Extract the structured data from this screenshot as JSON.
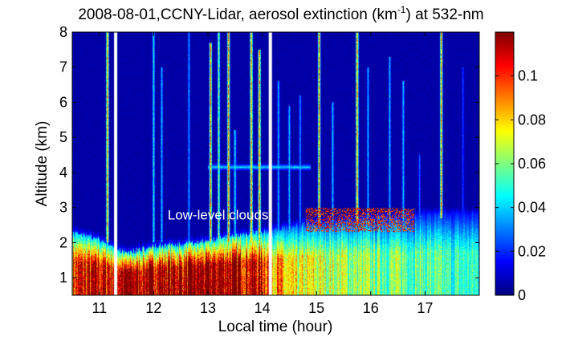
{
  "chart_data": {
    "type": "heatmap",
    "title_main": "2008-08-01,CCNY-Lidar, aerosol extinction (km",
    "title_sup": "-1",
    "title_end": ") at 532-nm",
    "xlabel": "Local time (hour)",
    "ylabel": "Altitude (km)",
    "xlim": [
      10.5,
      18.0
    ],
    "ylim": [
      0.5,
      8.0
    ],
    "xticks": [
      11,
      12,
      13,
      14,
      15,
      16,
      17
    ],
    "yticks": [
      1,
      2,
      3,
      4,
      5,
      6,
      7,
      8
    ],
    "colorbar": {
      "min": 0,
      "max": 0.12,
      "ticks": [
        0,
        0.02,
        0.04,
        0.06,
        0.08,
        0.1
      ],
      "tick_labels": [
        "0",
        "0.02",
        "0.04",
        "0.06",
        "0.08",
        "0.1"
      ],
      "colormap": "jet"
    },
    "annotation": {
      "text": "Low-level clouds",
      "x": 14.0,
      "y": 2.8,
      "color": "#ffffff"
    },
    "data_gaps_hours": [
      11.3,
      14.15
    ],
    "field": {
      "background": 0.003,
      "boundary_layer": [
        {
          "time": 10.5,
          "top_km": 2.3,
          "core_value": 0.1
        },
        {
          "time": 11.0,
          "top_km": 2.1,
          "core_value": 0.11
        },
        {
          "time": 11.5,
          "top_km": 1.7,
          "core_value": 0.12
        },
        {
          "time": 12.0,
          "top_km": 1.9,
          "core_value": 0.12
        },
        {
          "time": 12.5,
          "top_km": 1.95,
          "core_value": 0.12
        },
        {
          "time": 13.0,
          "top_km": 2.05,
          "core_value": 0.12
        },
        {
          "time": 13.5,
          "top_km": 2.2,
          "core_value": 0.12
        },
        {
          "time": 14.0,
          "top_km": 2.3,
          "core_value": 0.11
        },
        {
          "time": 14.5,
          "top_km": 2.45,
          "core_value": 0.07
        },
        {
          "time": 15.0,
          "top_km": 2.55,
          "core_value": 0.07
        },
        {
          "time": 15.5,
          "top_km": 2.6,
          "core_value": 0.065
        },
        {
          "time": 16.0,
          "top_km": 2.7,
          "core_value": 0.06
        },
        {
          "time": 16.5,
          "top_km": 2.7,
          "core_value": 0.06
        },
        {
          "time": 17.0,
          "top_km": 2.8,
          "core_value": 0.055
        },
        {
          "time": 17.5,
          "top_km": 2.8,
          "core_value": 0.05
        },
        {
          "time": 18.0,
          "top_km": 2.8,
          "core_value": 0.05
        }
      ],
      "elevated_layer": {
        "t_start": 13.0,
        "t_end": 14.9,
        "altitude_km": 4.15,
        "thickness_km": 0.12,
        "value": 0.04
      },
      "cloud_plumes": [
        {
          "time": 11.15,
          "y_bottom": 2.0,
          "y_top": 8.0,
          "value": 0.12
        },
        {
          "time": 12.0,
          "y_bottom": 2.0,
          "y_top": 8.0,
          "value": 0.06
        },
        {
          "time": 12.15,
          "y_bottom": 2.0,
          "y_top": 7.0,
          "value": 0.05
        },
        {
          "time": 12.65,
          "y_bottom": 2.0,
          "y_top": 8.0,
          "value": 0.045
        },
        {
          "time": 13.05,
          "y_bottom": 2.0,
          "y_top": 7.7,
          "value": 0.12
        },
        {
          "time": 13.2,
          "y_bottom": 2.0,
          "y_top": 8.0,
          "value": 0.08
        },
        {
          "time": 13.38,
          "y_bottom": 2.0,
          "y_top": 8.0,
          "value": 0.12
        },
        {
          "time": 13.5,
          "y_bottom": 2.0,
          "y_top": 5.2,
          "value": 0.06
        },
        {
          "time": 13.8,
          "y_bottom": 2.0,
          "y_top": 8.0,
          "value": 0.12
        },
        {
          "time": 13.95,
          "y_bottom": 2.0,
          "y_top": 7.5,
          "value": 0.12
        },
        {
          "time": 14.3,
          "y_bottom": 2.0,
          "y_top": 6.6,
          "value": 0.05
        },
        {
          "time": 14.5,
          "y_bottom": 2.3,
          "y_top": 5.9,
          "value": 0.05
        },
        {
          "time": 14.7,
          "y_bottom": 2.3,
          "y_top": 6.2,
          "value": 0.045
        },
        {
          "time": 15.05,
          "y_bottom": 2.5,
          "y_top": 8.0,
          "value": 0.12
        },
        {
          "time": 15.3,
          "y_bottom": 2.5,
          "y_top": 6.0,
          "value": 0.05
        },
        {
          "time": 15.75,
          "y_bottom": 2.5,
          "y_top": 8.0,
          "value": 0.12
        },
        {
          "time": 15.95,
          "y_bottom": 2.5,
          "y_top": 7.0,
          "value": 0.05
        },
        {
          "time": 16.35,
          "y_bottom": 2.6,
          "y_top": 7.3,
          "value": 0.05
        },
        {
          "time": 16.6,
          "y_bottom": 2.6,
          "y_top": 6.6,
          "value": 0.05
        },
        {
          "time": 16.9,
          "y_bottom": 2.6,
          "y_top": 4.5,
          "value": 0.035
        },
        {
          "time": 17.3,
          "y_bottom": 2.7,
          "y_top": 8.0,
          "value": 0.12
        },
        {
          "time": 17.7,
          "y_bottom": 2.7,
          "y_top": 7.0,
          "value": 0.03
        }
      ],
      "cloud_caps": [
        {
          "t_start": 14.8,
          "t_end": 16.8,
          "base_km": 2.3,
          "top_km": 3.0,
          "value": 0.12
        }
      ]
    }
  }
}
